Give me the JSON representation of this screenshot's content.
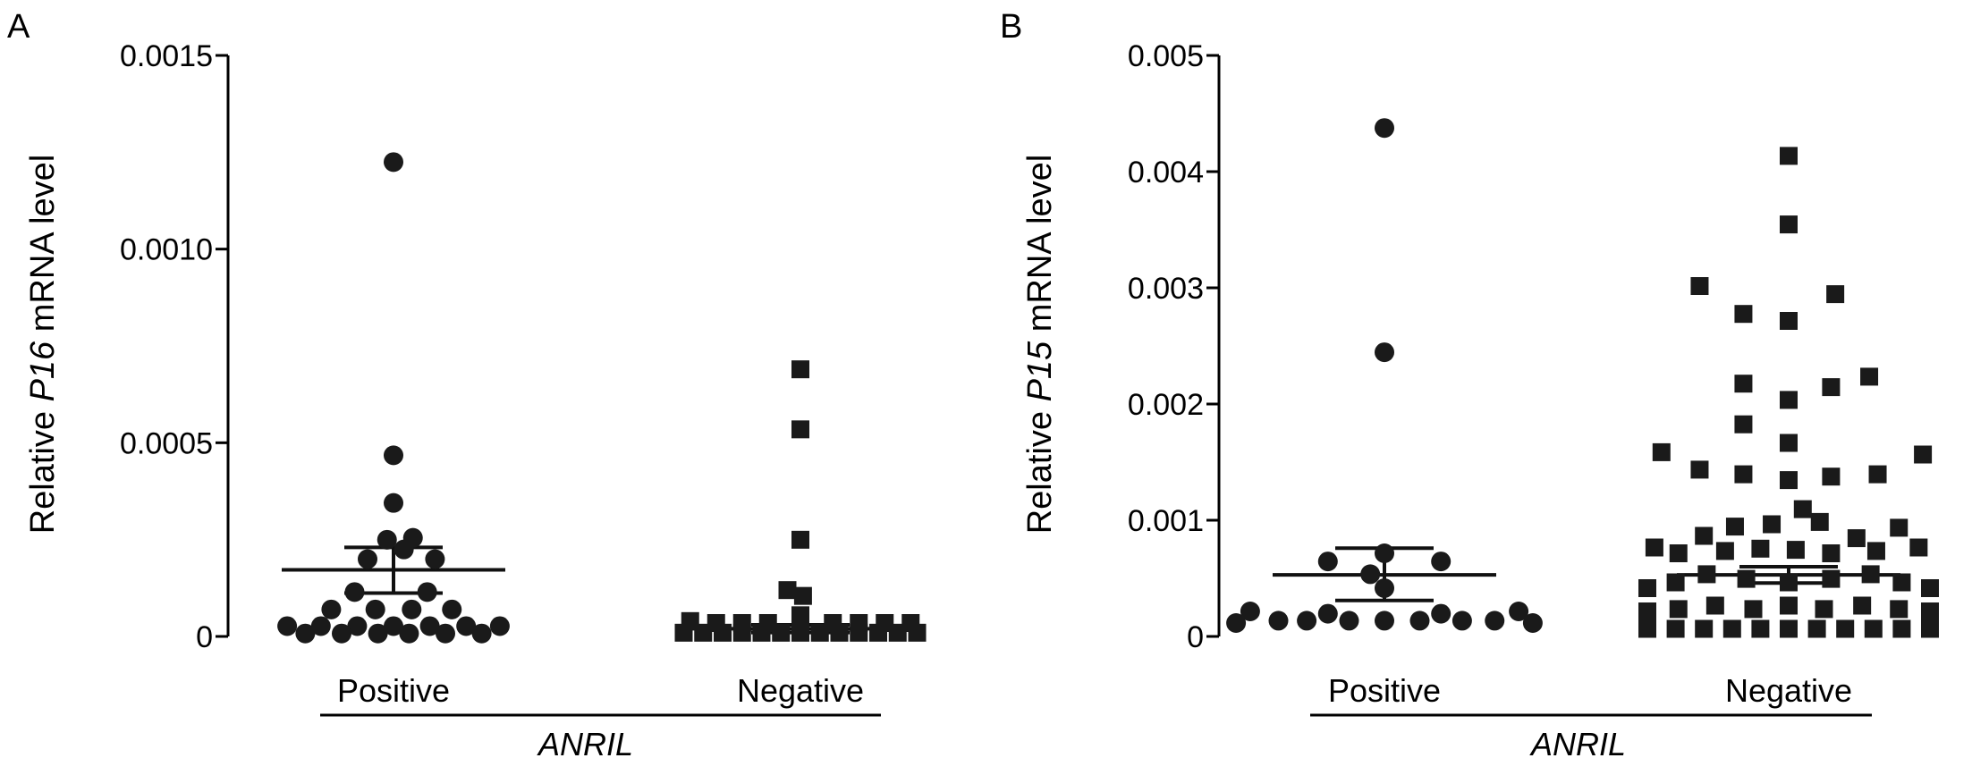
{
  "chart_data": [
    {
      "panel": "A",
      "type": "scatter",
      "ylabel_prefix": "Relative ",
      "ylabel_gene": "P16",
      "ylabel_suffix": " mRNA level",
      "xlabel": "ANRIL",
      "categories": [
        "Positive",
        "Negative"
      ],
      "ylim": [
        0,
        0.0015
      ],
      "yticks": [
        0,
        0.0005,
        0.001,
        0.0015
      ],
      "ytick_labels": [
        "0",
        "0.0005",
        "0.0010",
        "0.0015"
      ],
      "grid": false,
      "series": [
        {
          "category": "Positive",
          "marker": "circle",
          "mean": 0.000172,
          "error_upper": 0.00023,
          "error_lower": 0.000112,
          "points": [
            {
              "offset": 0.0,
              "y": 0.00122
            },
            {
              "offset": 0.0,
              "y": 0.000463
            },
            {
              "offset": 0.0,
              "y": 0.00034
            },
            {
              "offset": -0.05,
              "y": 0.000245
            },
            {
              "offset": 0.15,
              "y": 0.00025
            },
            {
              "offset": -0.2,
              "y": 0.000195
            },
            {
              "offset": 0.32,
              "y": 0.000195
            },
            {
              "offset": 0.08,
              "y": 0.00022
            },
            {
              "offset": -0.3,
              "y": 0.00011
            },
            {
              "offset": 0.26,
              "y": 0.00011
            },
            {
              "offset": -0.48,
              "y": 6.5e-05
            },
            {
              "offset": -0.14,
              "y": 6.5e-05
            },
            {
              "offset": 0.14,
              "y": 6.5e-05
            },
            {
              "offset": 0.45,
              "y": 6.5e-05
            },
            {
              "offset": -0.82,
              "y": 2.2e-05
            },
            {
              "offset": -0.56,
              "y": 2.2e-05
            },
            {
              "offset": -0.28,
              "y": 2.2e-05
            },
            {
              "offset": 0.0,
              "y": 2.2e-05
            },
            {
              "offset": 0.28,
              "y": 2.2e-05
            },
            {
              "offset": 0.56,
              "y": 2.2e-05
            },
            {
              "offset": 0.82,
              "y": 2.2e-05
            },
            {
              "offset": -0.68,
              "y": 3e-06
            },
            {
              "offset": -0.4,
              "y": 3e-06
            },
            {
              "offset": -0.12,
              "y": 3e-06
            },
            {
              "offset": 0.12,
              "y": 3e-06
            },
            {
              "offset": 0.4,
              "y": 3e-06
            },
            {
              "offset": 0.68,
              "y": 3e-06
            }
          ]
        },
        {
          "category": "Negative",
          "marker": "square",
          "mean": 2e-05,
          "error_upper": 3e-05,
          "error_lower": 1e-05,
          "points": [
            {
              "offset": 0.0,
              "y": 0.000685
            },
            {
              "offset": 0.0,
              "y": 0.00053
            },
            {
              "offset": 0.0,
              "y": 0.000245
            },
            {
              "offset": -0.1,
              "y": 0.000115
            },
            {
              "offset": 0.02,
              "y": 0.0001
            },
            {
              "offset": -0.85,
              "y": 3.5e-05
            },
            {
              "offset": -0.65,
              "y": 3e-05
            },
            {
              "offset": -0.45,
              "y": 3e-05
            },
            {
              "offset": -0.25,
              "y": 3e-05
            },
            {
              "offset": 0.0,
              "y": 5e-05
            },
            {
              "offset": 0.25,
              "y": 3e-05
            },
            {
              "offset": 0.45,
              "y": 3e-05
            },
            {
              "offset": 0.65,
              "y": 3e-05
            },
            {
              "offset": 0.85,
              "y": 3e-05
            },
            {
              "offset": -0.9,
              "y": 5e-06
            },
            {
              "offset": -0.75,
              "y": 5e-06
            },
            {
              "offset": -0.6,
              "y": 5e-06
            },
            {
              "offset": -0.45,
              "y": 5e-06
            },
            {
              "offset": -0.3,
              "y": 5e-06
            },
            {
              "offset": -0.15,
              "y": 5e-06
            },
            {
              "offset": 0.0,
              "y": 5e-06
            },
            {
              "offset": 0.15,
              "y": 5e-06
            },
            {
              "offset": 0.3,
              "y": 5e-06
            },
            {
              "offset": 0.45,
              "y": 5e-06
            },
            {
              "offset": 0.6,
              "y": 5e-06
            },
            {
              "offset": 0.75,
              "y": 5e-06
            },
            {
              "offset": 0.9,
              "y": 5e-06
            }
          ]
        }
      ]
    },
    {
      "panel": "B",
      "type": "scatter",
      "ylabel_prefix": "Relative ",
      "ylabel_gene": "P15",
      "ylabel_suffix": " mRNA level",
      "xlabel": "ANRIL",
      "categories": [
        "Positive",
        "Negative"
      ],
      "ylim": [
        0,
        0.005
      ],
      "yticks": [
        0,
        0.001,
        0.002,
        0.003,
        0.004,
        0.005
      ],
      "ytick_labels": [
        "0",
        "0.001",
        "0.002",
        "0.003",
        "0.004",
        "0.005"
      ],
      "grid": false,
      "series": [
        {
          "category": "Positive",
          "marker": "circle",
          "mean": 0.00053,
          "error_upper": 0.00076,
          "error_lower": 0.00031,
          "points": [
            {
              "offset": 0.0,
              "y": 0.00436
            },
            {
              "offset": 0.0,
              "y": 0.00243
            },
            {
              "offset": 0.0,
              "y": 0.0007
            },
            {
              "offset": -0.4,
              "y": 0.00063
            },
            {
              "offset": 0.4,
              "y": 0.00063
            },
            {
              "offset": -0.1,
              "y": 0.00052
            },
            {
              "offset": 0.0,
              "y": 0.0004
            },
            {
              "offset": -0.4,
              "y": 0.00018
            },
            {
              "offset": 0.4,
              "y": 0.00018
            },
            {
              "offset": -0.95,
              "y": 0.0002
            },
            {
              "offset": 0.95,
              "y": 0.0002
            },
            {
              "offset": -0.75,
              "y": 0.00012
            },
            {
              "offset": -0.55,
              "y": 0.00012
            },
            {
              "offset": -0.25,
              "y": 0.00012
            },
            {
              "offset": 0.0,
              "y": 0.00012
            },
            {
              "offset": 0.25,
              "y": 0.00012
            },
            {
              "offset": 0.55,
              "y": 0.00012
            },
            {
              "offset": 0.78,
              "y": 0.00012
            },
            {
              "offset": -1.05,
              "y": 0.0001
            },
            {
              "offset": 1.05,
              "y": 0.0001
            }
          ]
        },
        {
          "category": "Negative",
          "marker": "square",
          "mean": 0.00053,
          "error_upper": 0.0006,
          "error_lower": 0.00046,
          "points": [
            {
              "offset": 0.0,
              "y": 0.00412
            },
            {
              "offset": 0.0,
              "y": 0.00353
            },
            {
              "offset": -0.63,
              "y": 0.003
            },
            {
              "offset": -0.32,
              "y": 0.00276
            },
            {
              "offset": 0.0,
              "y": 0.0027
            },
            {
              "offset": 0.33,
              "y": 0.00293
            },
            {
              "offset": -0.32,
              "y": 0.00216
            },
            {
              "offset": 0.0,
              "y": 0.00202
            },
            {
              "offset": 0.3,
              "y": 0.00213
            },
            {
              "offset": 0.57,
              "y": 0.00222
            },
            {
              "offset": -0.32,
              "y": 0.00181
            },
            {
              "offset": 0.0,
              "y": 0.00165
            },
            {
              "offset": -0.9,
              "y": 0.00157
            },
            {
              "offset": 0.95,
              "y": 0.00155
            },
            {
              "offset": -0.63,
              "y": 0.00142
            },
            {
              "offset": -0.32,
              "y": 0.00138
            },
            {
              "offset": 0.0,
              "y": 0.00133
            },
            {
              "offset": 0.3,
              "y": 0.00136
            },
            {
              "offset": 0.63,
              "y": 0.00138
            },
            {
              "offset": 0.1,
              "y": 0.00108
            },
            {
              "offset": -0.38,
              "y": 0.00093
            },
            {
              "offset": -0.12,
              "y": 0.00095
            },
            {
              "offset": 0.22,
              "y": 0.00097
            },
            {
              "offset": 0.78,
              "y": 0.00092
            },
            {
              "offset": -0.6,
              "y": 0.00085
            },
            {
              "offset": 0.48,
              "y": 0.00083
            },
            {
              "offset": -0.95,
              "y": 0.00075
            },
            {
              "offset": -0.78,
              "y": 0.0007
            },
            {
              "offset": -0.45,
              "y": 0.00072
            },
            {
              "offset": -0.2,
              "y": 0.00074
            },
            {
              "offset": 0.05,
              "y": 0.00073
            },
            {
              "offset": 0.3,
              "y": 0.0007
            },
            {
              "offset": 0.62,
              "y": 0.00072
            },
            {
              "offset": 0.92,
              "y": 0.00075
            },
            {
              "offset": -1.0,
              "y": 0.0004
            },
            {
              "offset": -0.8,
              "y": 0.00045
            },
            {
              "offset": -0.58,
              "y": 0.00052
            },
            {
              "offset": -0.3,
              "y": 0.00048
            },
            {
              "offset": 0.0,
              "y": 0.00045
            },
            {
              "offset": 0.3,
              "y": 0.00048
            },
            {
              "offset": 0.58,
              "y": 0.00052
            },
            {
              "offset": 0.8,
              "y": 0.00045
            },
            {
              "offset": 1.0,
              "y": 0.0004
            },
            {
              "offset": -1.0,
              "y": 0.0002
            },
            {
              "offset": -0.78,
              "y": 0.00022
            },
            {
              "offset": -0.52,
              "y": 0.00025
            },
            {
              "offset": -0.25,
              "y": 0.00022
            },
            {
              "offset": 0.0,
              "y": 0.00025
            },
            {
              "offset": 0.25,
              "y": 0.00022
            },
            {
              "offset": 0.52,
              "y": 0.00025
            },
            {
              "offset": 0.78,
              "y": 0.00022
            },
            {
              "offset": 1.0,
              "y": 0.0002
            },
            {
              "offset": -1.0,
              "y": 5e-05
            },
            {
              "offset": -0.8,
              "y": 5e-05
            },
            {
              "offset": -0.6,
              "y": 5e-05
            },
            {
              "offset": -0.4,
              "y": 5e-05
            },
            {
              "offset": -0.2,
              "y": 5e-05
            },
            {
              "offset": 0.0,
              "y": 5e-05
            },
            {
              "offset": 0.2,
              "y": 5e-05
            },
            {
              "offset": 0.4,
              "y": 5e-05
            },
            {
              "offset": 0.6,
              "y": 5e-05
            },
            {
              "offset": 0.8,
              "y": 5e-05
            },
            {
              "offset": 1.0,
              "y": 5e-05
            }
          ]
        }
      ]
    }
  ],
  "marker_color": "#1a1a1a"
}
